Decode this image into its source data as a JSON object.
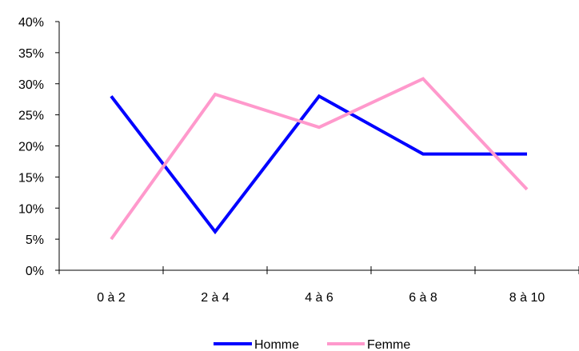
{
  "chart_data": {
    "type": "line",
    "title": "",
    "xlabel": "",
    "ylabel": "",
    "categories": [
      "0 à 2",
      "2 à 4",
      "4 à 6",
      "6 à 8",
      "8 à 10"
    ],
    "ylim": [
      0,
      0.4
    ],
    "yticks": [
      "0%",
      "5%",
      "10%",
      "15%",
      "20%",
      "25%",
      "30%",
      "35%",
      "40%"
    ],
    "grid": false,
    "legend": "bottom",
    "series": [
      {
        "name": "Homme",
        "color": "#0000ff",
        "values": [
          0.28,
          0.062,
          0.28,
          0.187,
          0.187
        ]
      },
      {
        "name": "Femme",
        "color": "#ff99cc",
        "values": [
          0.05,
          0.283,
          0.23,
          0.308,
          0.13
        ]
      }
    ]
  }
}
